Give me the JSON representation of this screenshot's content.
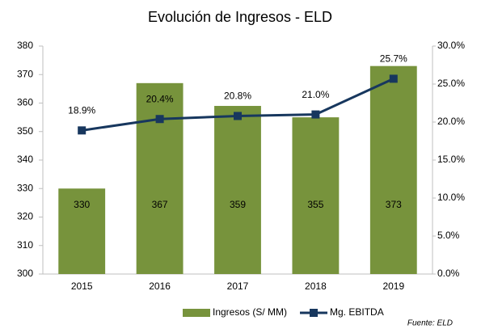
{
  "chart_data": {
    "type": "bar_line",
    "title": "Evolución de Ingresos - ELD",
    "categories": [
      "2015",
      "2016",
      "2017",
      "2018",
      "2019"
    ],
    "series": [
      {
        "name": "Ingresos (S/ MM)",
        "type": "bar",
        "color": "#77933c",
        "values": [
          330,
          367,
          359,
          355,
          373
        ]
      },
      {
        "name": "Mg. EBITDA",
        "type": "line",
        "axis": "y2",
        "color": "#17375e",
        "values": [
          18.9,
          20.4,
          20.8,
          21.0,
          25.7
        ],
        "value_labels": [
          "18.9%",
          "20.4%",
          "20.8%",
          "21.0%",
          "25.7%"
        ]
      }
    ],
    "ylim": [
      300,
      380
    ],
    "yticks": [
      300,
      310,
      320,
      330,
      340,
      350,
      360,
      370,
      380
    ],
    "y2lim": [
      0,
      30
    ],
    "y2ticks": [
      {
        "value": 0,
        "label": "0.0%"
      },
      {
        "value": 5,
        "label": "5.0%"
      },
      {
        "value": 10,
        "label": "10.0%"
      },
      {
        "value": 15,
        "label": "15.0%"
      },
      {
        "value": 20,
        "label": "20.0%"
      },
      {
        "value": 25,
        "label": "25.0%"
      },
      {
        "value": 30,
        "label": "30.0%"
      }
    ],
    "legend": "bottom",
    "source": "Fuente: ELD"
  }
}
